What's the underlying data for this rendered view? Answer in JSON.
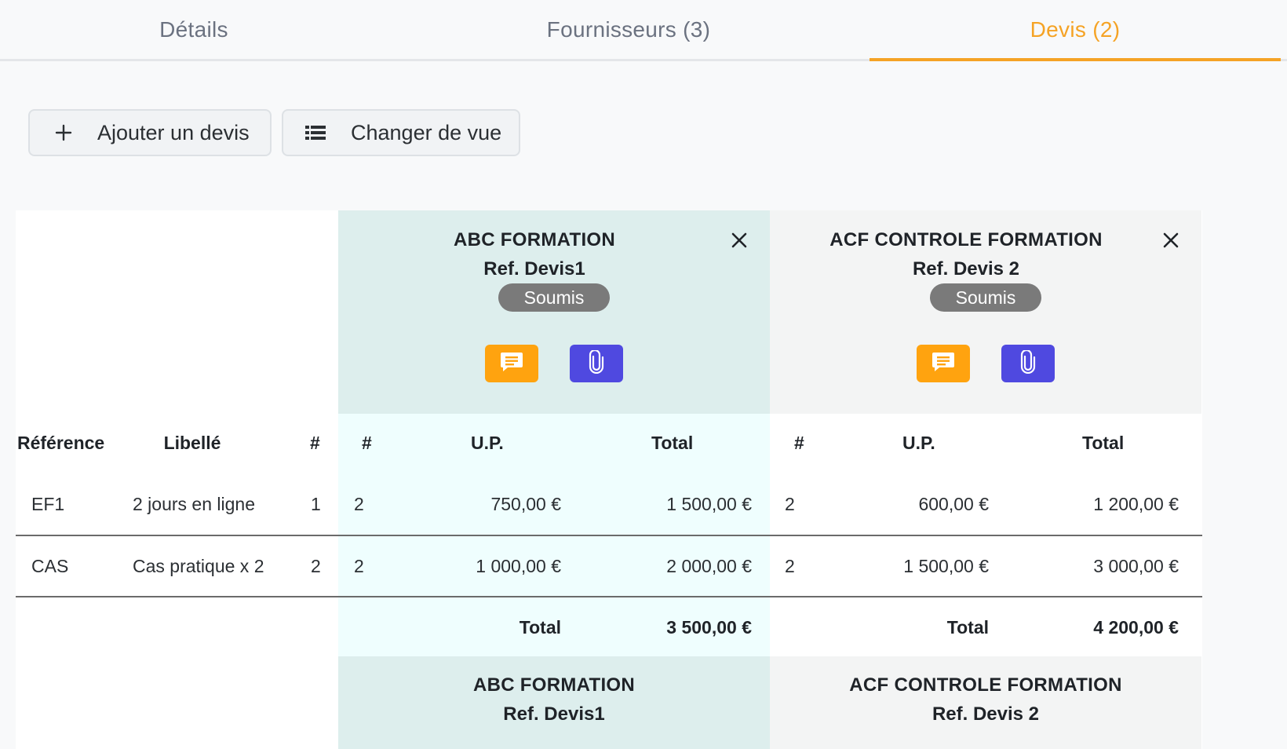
{
  "tabs": [
    {
      "label": "Détails"
    },
    {
      "label": "Fournisseurs (3)"
    },
    {
      "label": "Devis (2)"
    }
  ],
  "colors": {
    "accent": "#f5a325",
    "comment": "#ffa30f",
    "attach": "#4f49e0",
    "badge": "#7a7a7a"
  },
  "toolbar": {
    "add_label": "Ajouter un devis",
    "add_icon": "plus-icon",
    "view_label": "Changer de vue",
    "view_icon": "list-icon"
  },
  "table": {
    "headers": {
      "reference": "Référence",
      "label": "Libellé",
      "qty": "#"
    },
    "rows": [
      {
        "reference": "EF1",
        "label": "2 jours en ligne",
        "qty": "1"
      },
      {
        "reference": "CAS",
        "label": "Cas pratique x 2",
        "qty": "2"
      }
    ]
  },
  "quotes": [
    {
      "supplier": "ABC FORMATION",
      "ref": "Ref. Devis1",
      "status": "Soumis",
      "headers": {
        "qty": "#",
        "unit_price": "U.P.",
        "total": "Total"
      },
      "rows": [
        {
          "qty": "2",
          "unit_price": "750,00 €",
          "total": "1 500,00 €"
        },
        {
          "qty": "2",
          "unit_price": "1 000,00 €",
          "total": "2 000,00 €"
        }
      ],
      "total_label": "Total",
      "total_value": "3 500,00 €"
    },
    {
      "supplier": "ACF CONTROLE FORMATION",
      "ref": "Ref. Devis 2",
      "status": "Soumis",
      "headers": {
        "qty": "#",
        "unit_price": "U.P.",
        "total": "Total"
      },
      "rows": [
        {
          "qty": "2",
          "unit_price": "600,00 €",
          "total": "1 200,00 €"
        },
        {
          "qty": "2",
          "unit_price": "1 500,00 €",
          "total": "3 000,00 €"
        }
      ],
      "total_label": "Total",
      "total_value": "4 200,00 €"
    }
  ]
}
